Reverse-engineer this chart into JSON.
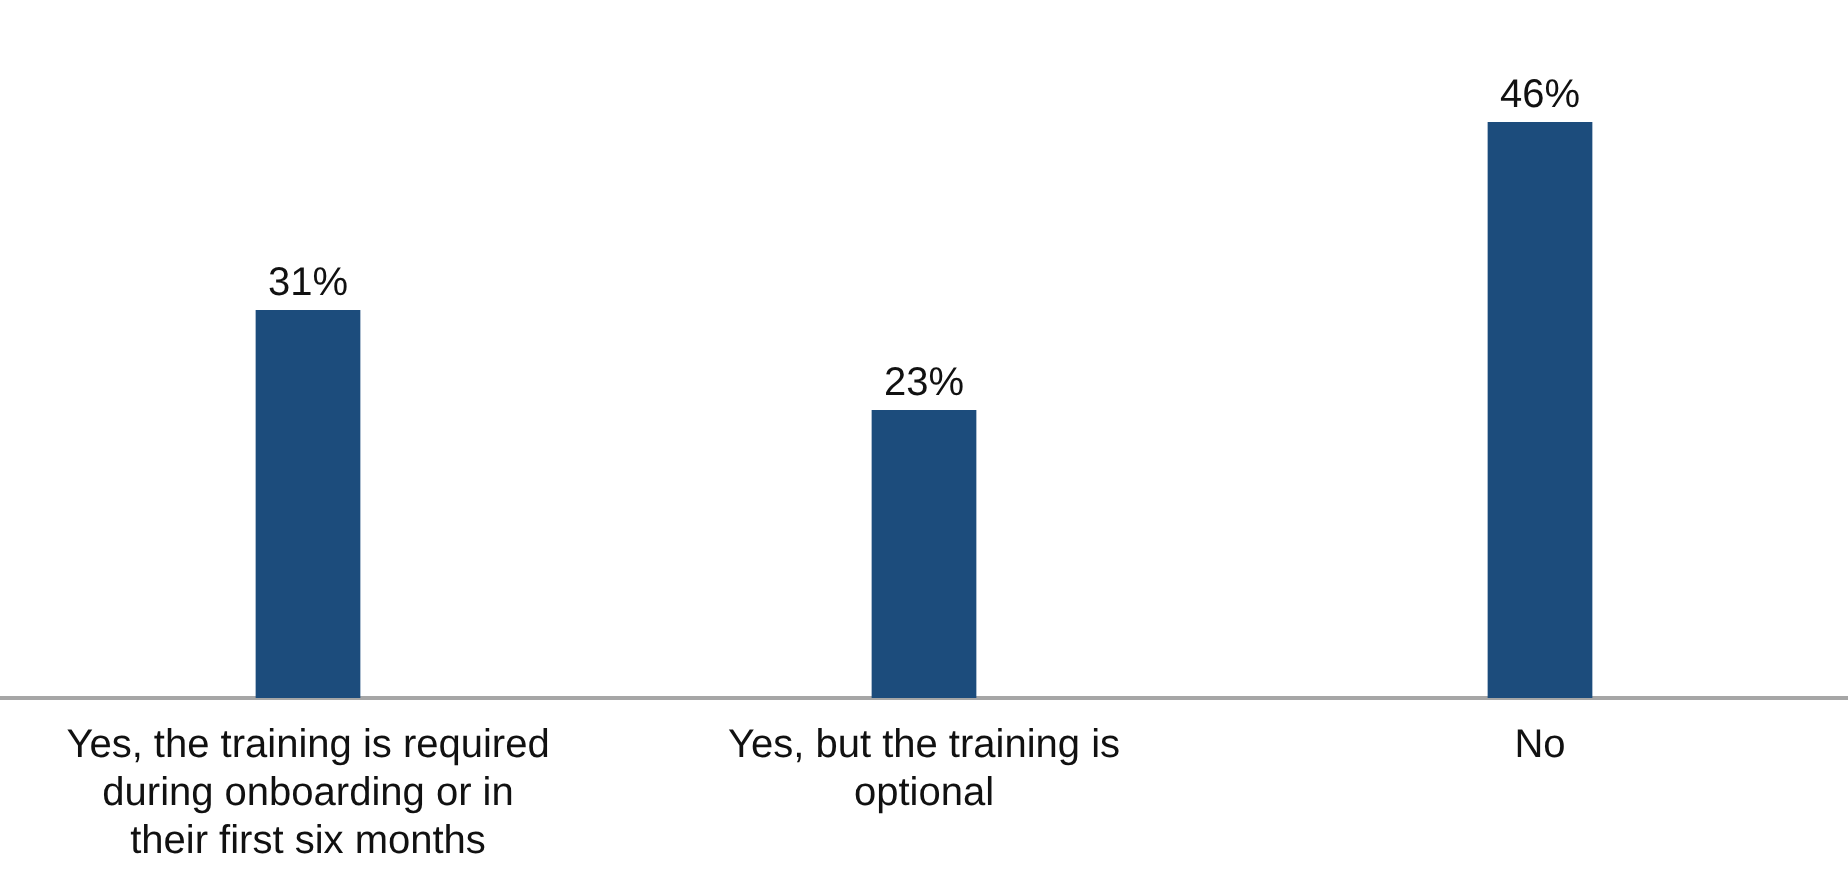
{
  "chart_data": {
    "type": "bar",
    "categories": [
      "Yes, the training is required during onboarding or in their first six months",
      "Yes, but the training is optional",
      "No"
    ],
    "values": [
      31,
      23,
      46
    ],
    "color": "#1c4c7c",
    "value_labels": [
      "31%",
      "23%",
      "46%"
    ],
    "tick_labels": "x",
    "grid": false,
    "legend": false
  }
}
